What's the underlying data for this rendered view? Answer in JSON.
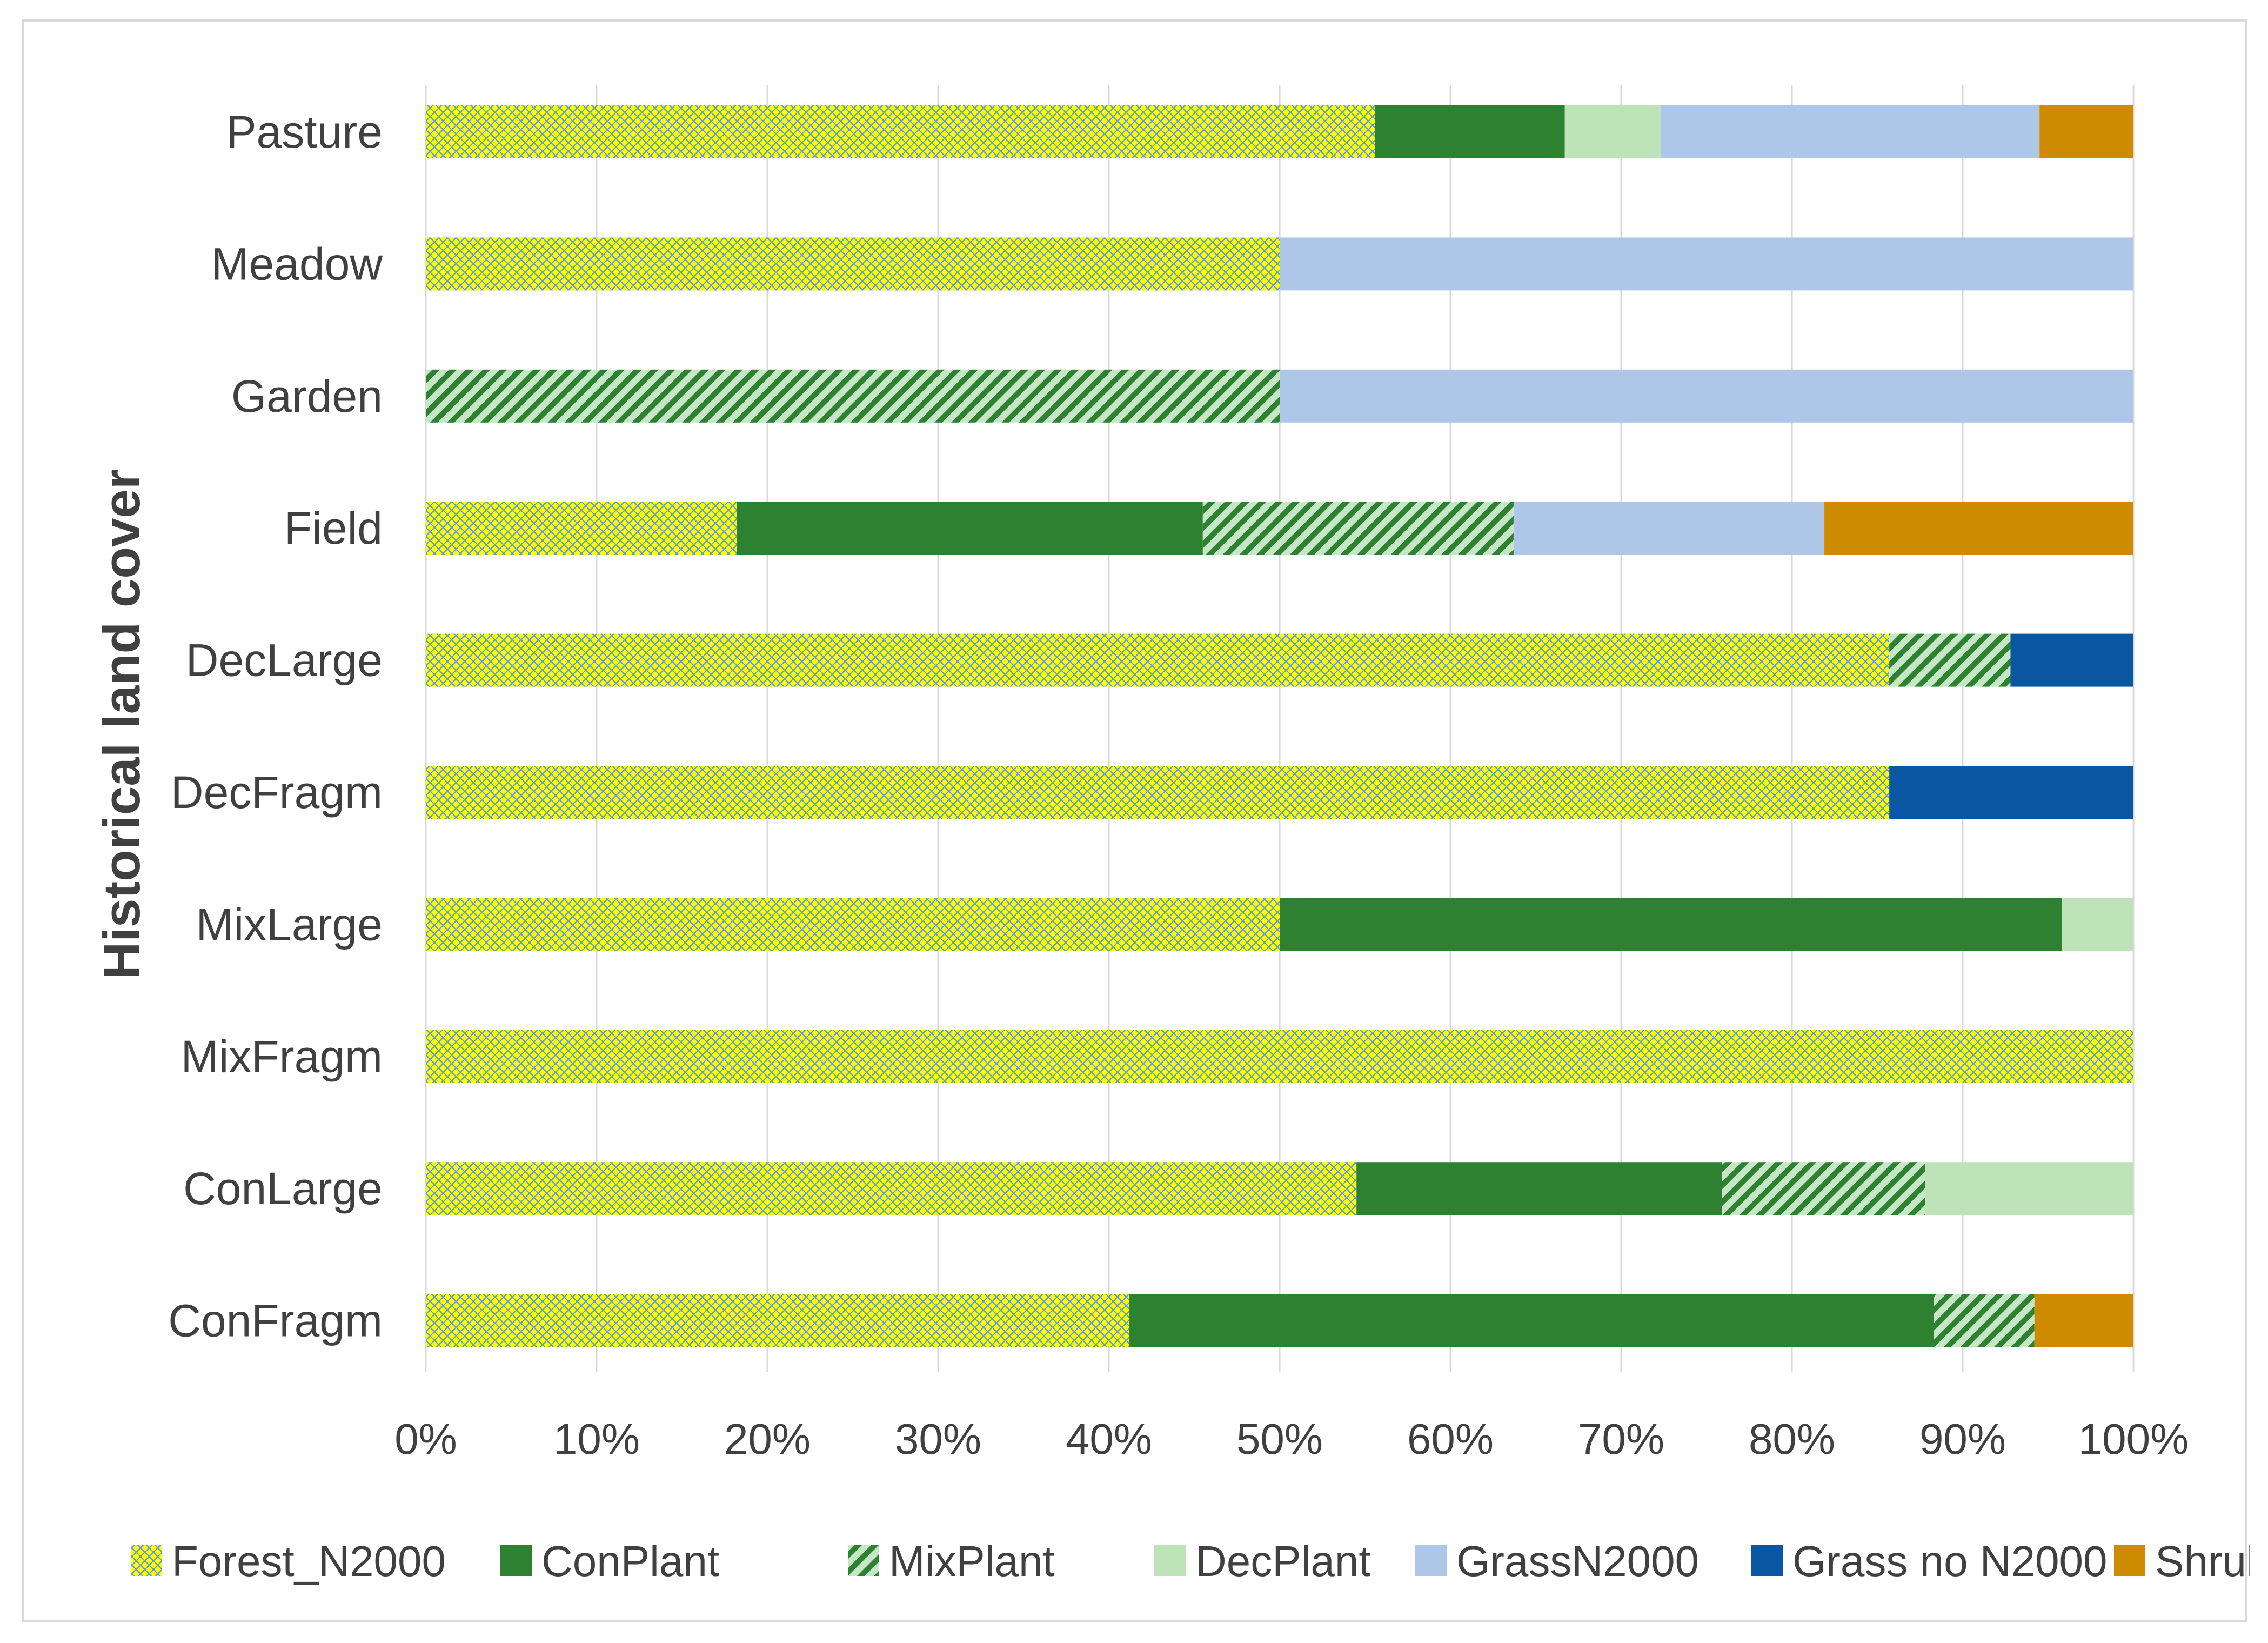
{
  "chart_data": {
    "type": "bar",
    "orientation": "horizontal",
    "stacked": "percent",
    "title": "",
    "ylabel": "Historical land cover",
    "xlabel": "",
    "xlim": [
      0,
      100
    ],
    "x_ticks": [
      0,
      10,
      20,
      30,
      40,
      50,
      60,
      70,
      80,
      90,
      100
    ],
    "x_tick_labels": [
      "0%",
      "10%",
      "20%",
      "30%",
      "40%",
      "50%",
      "60%",
      "70%",
      "80%",
      "90%",
      "100%"
    ],
    "grid": true,
    "legend_position": "bottom",
    "categories": [
      "Pasture",
      "Meadow",
      "Garden",
      "Field",
      "DecLarge",
      "DecFragm",
      "MixLarge",
      "MixFragm",
      "ConLarge",
      "ConFragm"
    ],
    "series": [
      {
        "name": "Forest_N2000",
        "color": "#ffff00",
        "pattern": "crosshatch",
        "pattern_color": "#5b9bd5",
        "values": [
          55.6,
          50.0,
          0.0,
          18.2,
          85.7,
          85.7,
          50.0,
          100.0,
          54.5,
          41.2
        ]
      },
      {
        "name": "ConPlant",
        "color": "#2e8130",
        "pattern": "solid",
        "values": [
          11.1,
          0.0,
          0.0,
          27.3,
          0.0,
          0.0,
          45.8,
          0.0,
          21.4,
          47.1
        ]
      },
      {
        "name": "MixPlant",
        "color": "#2e8130",
        "pattern": "diagonal",
        "pattern_bg": "#c6e7c6",
        "values": [
          0.0,
          0.0,
          50.0,
          18.2,
          7.1,
          0.0,
          0.0,
          0.0,
          11.9,
          5.9
        ]
      },
      {
        "name": "DecPlant",
        "color": "#bfe3b8",
        "pattern": "solid",
        "values": [
          5.6,
          0.0,
          0.0,
          0.0,
          0.0,
          0.0,
          4.2,
          0.0,
          12.2,
          0.0
        ]
      },
      {
        "name": "GrassN2000",
        "color": "#aec6e8",
        "pattern": "solid",
        "values": [
          22.2,
          50.0,
          50.0,
          18.2,
          0.0,
          0.0,
          0.0,
          0.0,
          0.0,
          0.0
        ]
      },
      {
        "name": "Grass no N2000",
        "color": "#0b56a0",
        "pattern": "solid",
        "values": [
          0.0,
          0.0,
          0.0,
          0.0,
          7.2,
          14.3,
          0.0,
          0.0,
          0.0,
          0.0
        ]
      },
      {
        "name": "Shrub",
        "color": "#cc8b00",
        "pattern": "solid",
        "values": [
          5.5,
          0.0,
          0.0,
          18.1,
          0.0,
          0.0,
          0.0,
          0.0,
          0.0,
          5.8
        ]
      }
    ]
  }
}
